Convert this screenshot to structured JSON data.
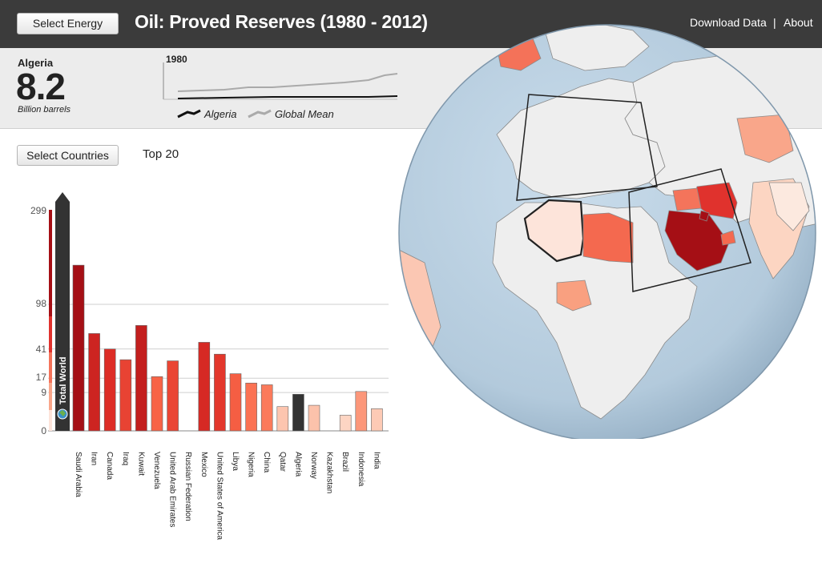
{
  "header": {
    "select_energy_label": "Select Energy",
    "title": "Oil: Proved Reserves (1980 - 2012)",
    "download_label": "Download Data",
    "separator": "|",
    "about_label": "About"
  },
  "summary": {
    "country": "Algeria",
    "value": "8.2",
    "unit": "Billion barrels",
    "year": "1980",
    "legend_country": "Algeria",
    "legend_global": "Global Mean"
  },
  "controls": {
    "select_countries_label": "Select Countries",
    "top_label": "Top 20"
  },
  "colors": {
    "header_bg": "#3b3b3b",
    "highlight": "#333333",
    "scale_high": "#a50f15",
    "scale_low": "#fee0d2",
    "ocean": "#bcd3e4"
  },
  "chart_data": {
    "type": "bar",
    "scale": "sqrt",
    "ylim": [
      0,
      299
    ],
    "yticks": [
      "299",
      "98",
      "41",
      "17",
      "9",
      "0"
    ],
    "total_label": "Total World",
    "categories": [
      "Saudi Arabia",
      "Iran",
      "Canada",
      "Iraq",
      "Kuwait",
      "Venezuela",
      "United Arab Emirates",
      "Russian Federation",
      "Mexico",
      "United States of America",
      "Libya",
      "Nigeria",
      "China",
      "Qatar",
      "Algeria",
      "Norway",
      "Kazakhstan",
      "Brazil",
      "Indonesia",
      "India"
    ],
    "values": [
      168,
      58,
      41,
      31,
      68,
      18,
      30,
      0,
      48,
      36,
      20,
      14,
      13,
      3.6,
      8.2,
      4,
      0,
      1.5,
      9.5,
      3
    ],
    "highlight": "Algeria"
  }
}
